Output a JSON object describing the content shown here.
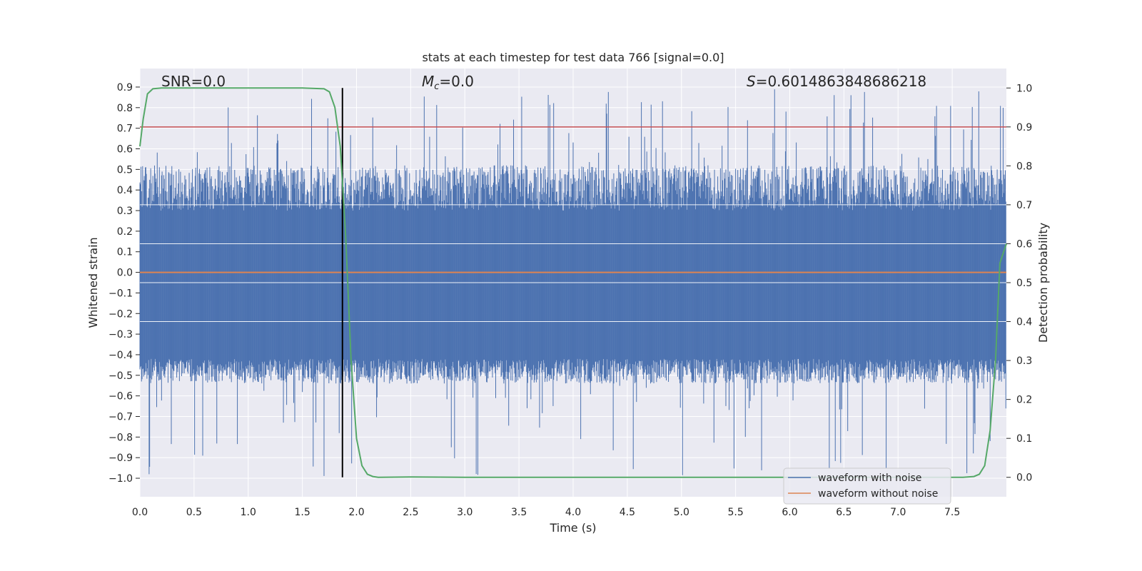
{
  "chart_data": {
    "type": "line",
    "title": "stats at each timestep for test data 766 [signal=0.0]",
    "xlabel": "Time (s)",
    "ylabel": "Whitened strain",
    "y2label": "Detection probability",
    "xlim": [
      0.0,
      8.0
    ],
    "ylim": [
      -1.09,
      0.99
    ],
    "y2lim": [
      -0.05,
      1.05
    ],
    "xticks": [
      "0.0",
      "0.5",
      "1.0",
      "1.5",
      "2.0",
      "2.5",
      "3.0",
      "3.5",
      "4.0",
      "4.5",
      "5.0",
      "5.5",
      "6.0",
      "6.5",
      "7.0",
      "7.5"
    ],
    "yticks": [
      "0.9",
      "0.8",
      "0.7",
      "0.6",
      "0.5",
      "0.4",
      "0.3",
      "0.2",
      "0.1",
      "0.0",
      "−0.1",
      "−0.2",
      "−0.3",
      "−0.4",
      "−0.5",
      "−0.6",
      "−0.7",
      "−0.8",
      "−0.9",
      "−1.0"
    ],
    "y2ticks": [
      "1.0",
      "0.9",
      "0.8",
      "0.7",
      "0.6",
      "0.5",
      "0.4",
      "0.3",
      "0.2",
      "0.1",
      "0.0"
    ],
    "annotations": {
      "snr": "SNR=0.0",
      "mc_symbol": "M",
      "mc_sub": "c",
      "mc_value": "=0.0",
      "s_symbol": "S",
      "s_value": "=0.6014863848686218"
    },
    "threshold": {
      "axis": "y2",
      "value": 0.9,
      "color": "#c44e52"
    },
    "marker_time": 1.87,
    "series": [
      {
        "name": "waveform with noise",
        "axis": "y",
        "color": "#4c72b0",
        "band_envelope": {
          "upper_typical": 0.3,
          "lower_typical": -0.42,
          "max": 0.89,
          "min": -1.0
        }
      },
      {
        "name": "waveform without noise",
        "axis": "y",
        "color": "#dd8452",
        "values_constant": 0.0
      },
      {
        "name": "detection probability",
        "axis": "y2",
        "color": "#55a868",
        "x": [
          0.0,
          0.03,
          0.07,
          0.12,
          0.2,
          0.5,
          1.0,
          1.5,
          1.7,
          1.75,
          1.8,
          1.85,
          1.9,
          1.95,
          2.0,
          2.05,
          2.1,
          2.15,
          2.2,
          2.5,
          3.0,
          4.0,
          5.0,
          6.0,
          7.0,
          7.6,
          7.7,
          7.75,
          7.8,
          7.85,
          7.9,
          7.94,
          8.0
        ],
        "y": [
          0.85,
          0.92,
          0.985,
          0.998,
          1.0,
          1.0,
          1.0,
          1.0,
          0.998,
          0.99,
          0.95,
          0.85,
          0.62,
          0.3,
          0.1,
          0.03,
          0.008,
          0.002,
          0.0,
          0.001,
          0.0,
          0.0,
          0.0,
          0.0,
          0.0,
          0.0,
          0.002,
          0.008,
          0.03,
          0.12,
          0.3,
          0.55,
          0.6
        ]
      }
    ],
    "legend": {
      "position": "lower-right",
      "entries": [
        "waveform with noise",
        "waveform without noise"
      ]
    }
  }
}
